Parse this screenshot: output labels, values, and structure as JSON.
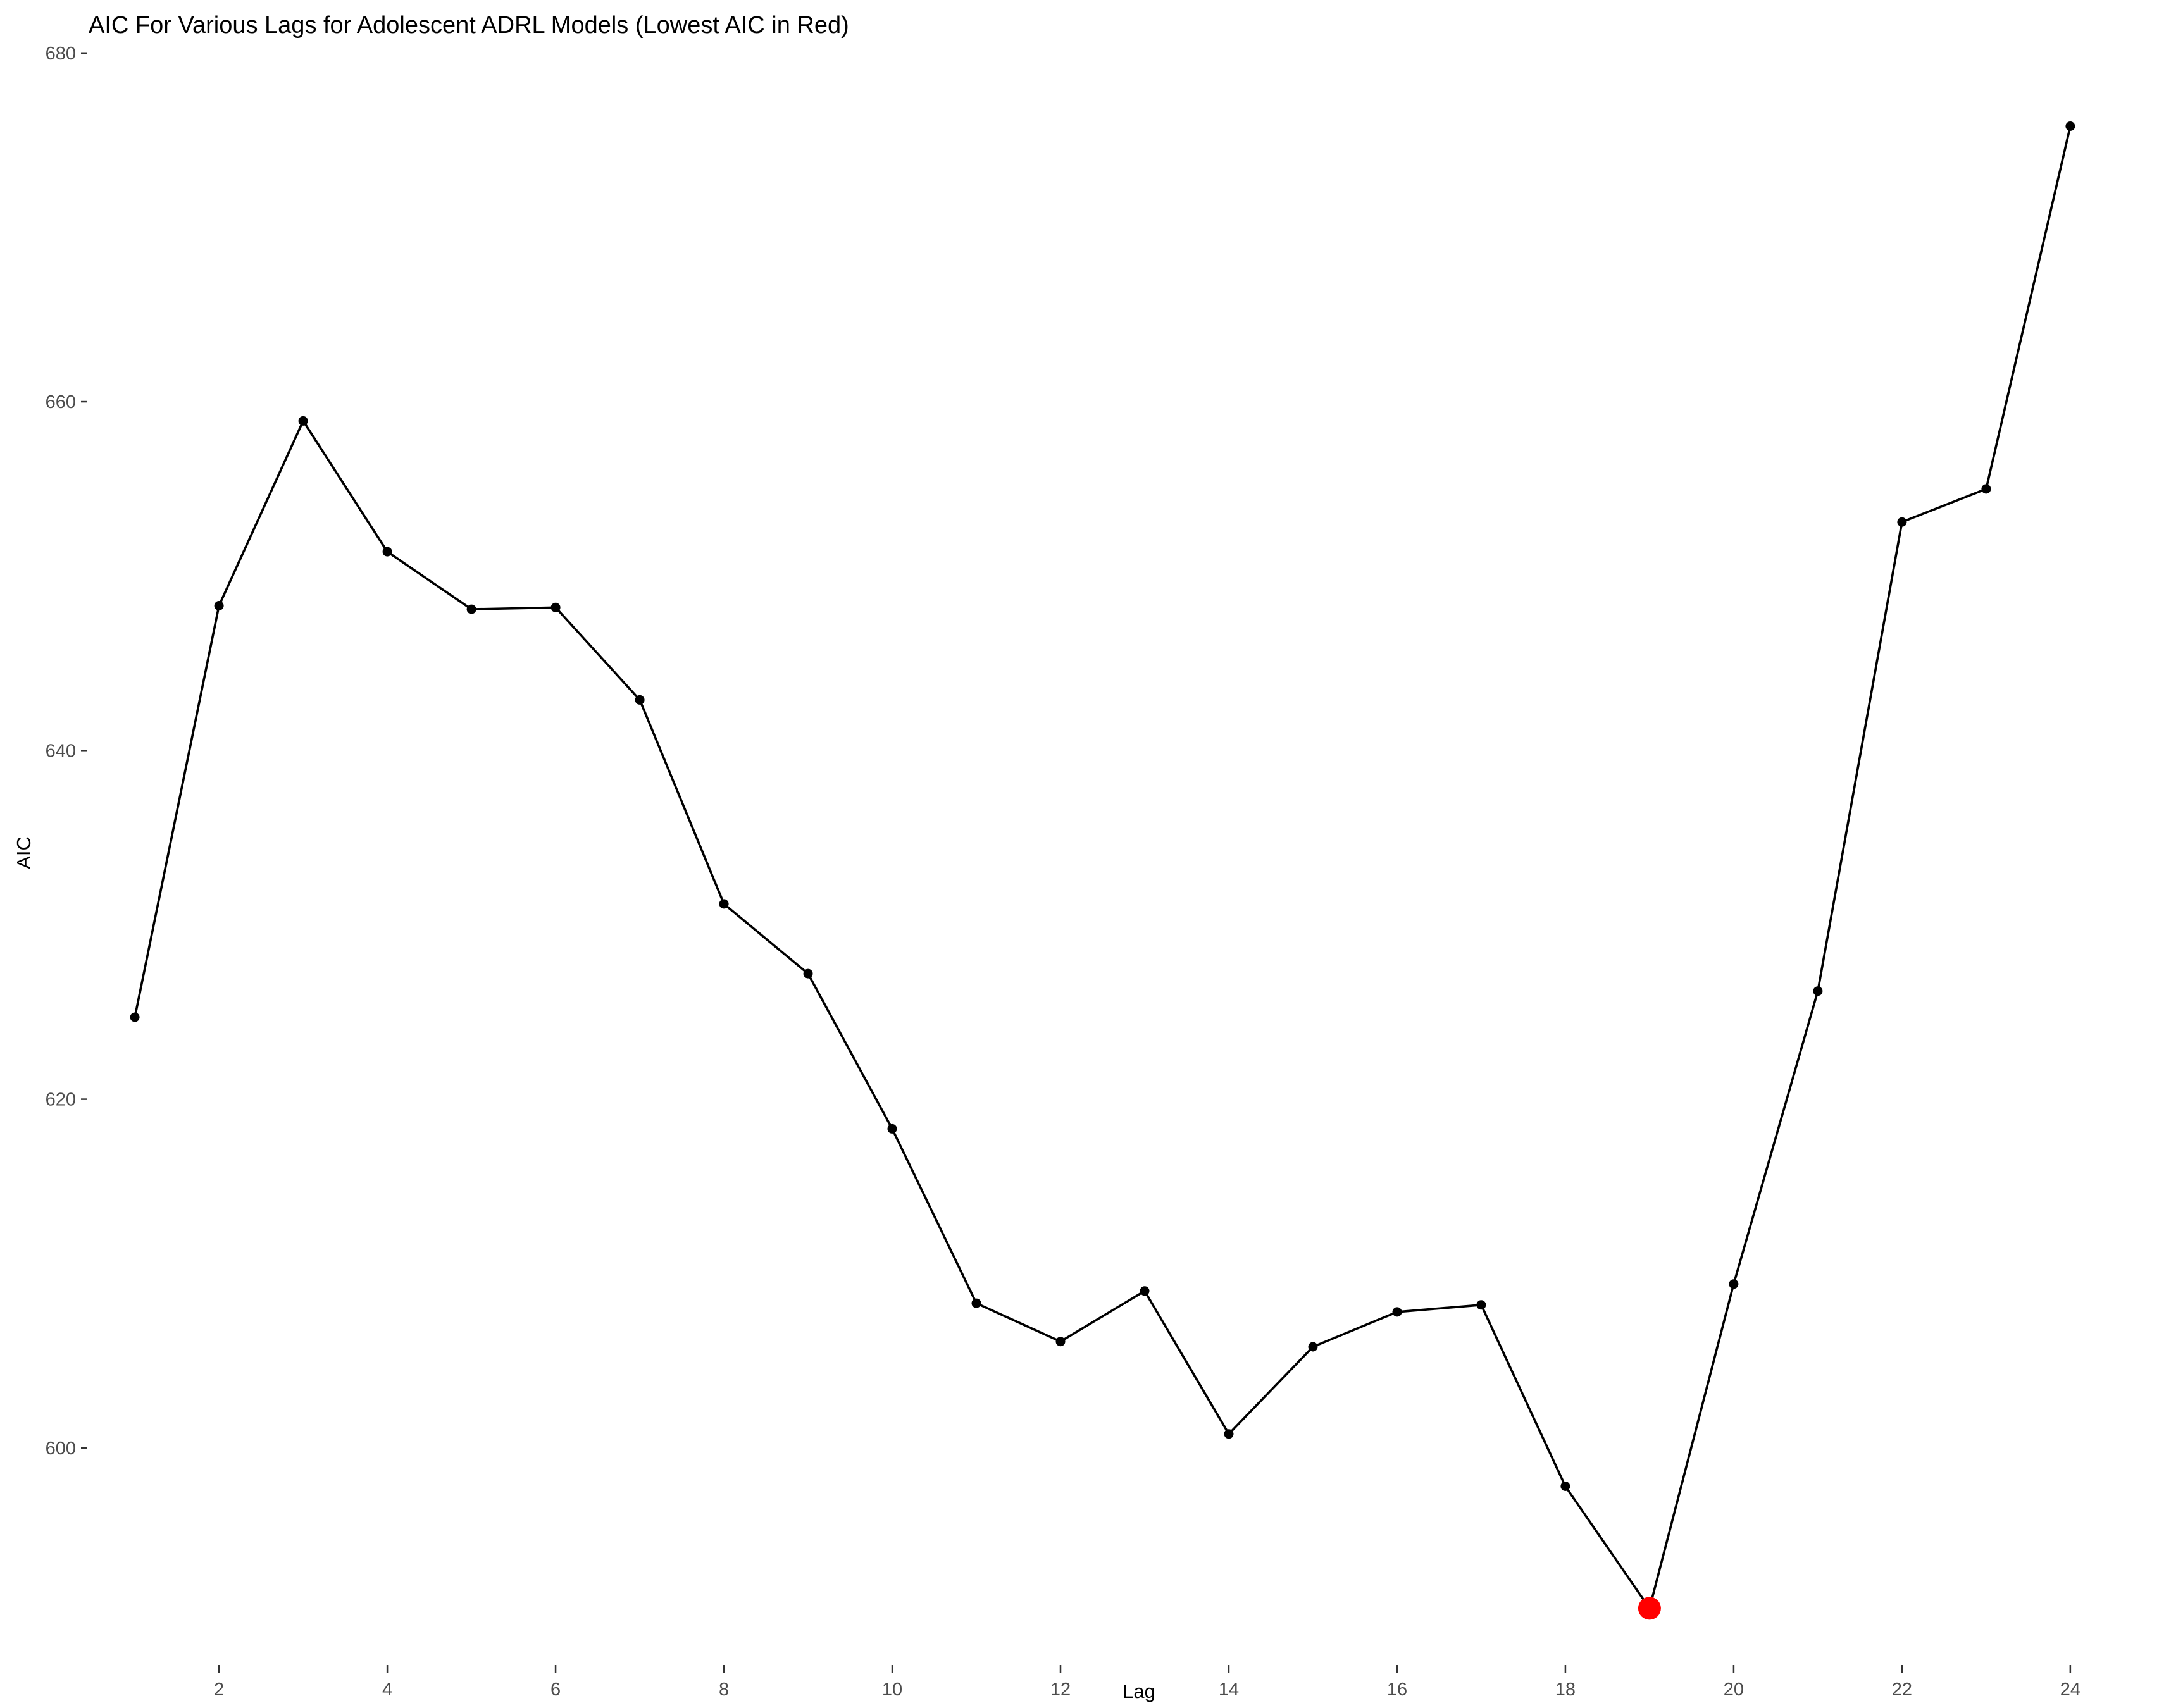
{
  "chart_data": {
    "type": "line",
    "title": "AIC For Various Lags for Adolescent ADRL Models (Lowest AIC in Red)",
    "xlabel": "Lag",
    "ylabel": "AIC",
    "x": [
      1,
      2,
      3,
      4,
      5,
      6,
      7,
      8,
      9,
      10,
      11,
      12,
      13,
      14,
      15,
      16,
      17,
      18,
      19,
      20,
      21,
      22,
      23,
      24
    ],
    "values": [
      624.7,
      648.3,
      658.9,
      651.4,
      648.1,
      648.2,
      642.9,
      631.2,
      627.2,
      618.3,
      608.3,
      606.1,
      609.0,
      600.8,
      605.8,
      607.8,
      608.2,
      597.8,
      590.8,
      609.4,
      626.2,
      653.1,
      655.0,
      675.8
    ],
    "xlim": [
      0.45,
      24.55
    ],
    "ylim": [
      589.8,
      680.5
    ],
    "x_ticks": [
      2,
      4,
      6,
      8,
      10,
      12,
      14,
      16,
      18,
      20,
      22,
      24
    ],
    "y_ticks": [
      600,
      620,
      640,
      660,
      680
    ],
    "highlight": {
      "x": 19,
      "value": 590.8,
      "color": "#ff0000",
      "label": "Lowest AIC"
    },
    "line_color": "#000000",
    "point_color": "#000000",
    "grid": false,
    "legend": "none"
  }
}
